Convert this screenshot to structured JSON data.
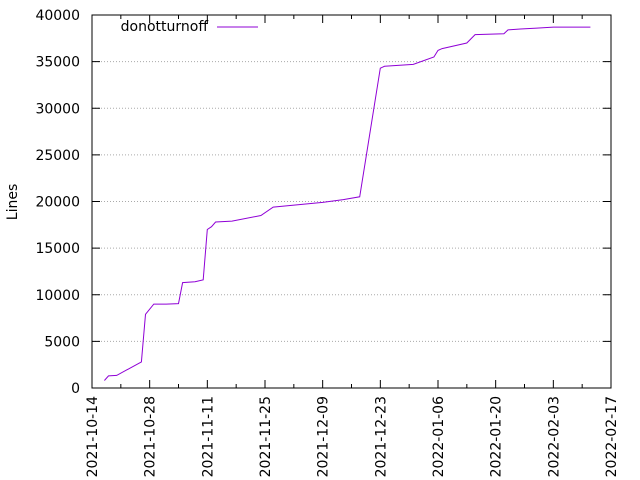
{
  "chart_data": {
    "type": "line",
    "xlabel": "",
    "ylabel": "Lines",
    "ylim": [
      0,
      40000
    ],
    "xlim": [
      "2021-10-14",
      "2022-02-17"
    ],
    "grid": {
      "y": true,
      "x": false,
      "style": "dotted",
      "color": "#aaaaaa"
    },
    "legend_position": "top-left",
    "x_ticks": [
      "2021-10-14",
      "2021-10-28",
      "2021-11-11",
      "2021-11-25",
      "2021-12-09",
      "2021-12-23",
      "2022-01-06",
      "2022-01-20",
      "2022-02-03",
      "2022-02-17"
    ],
    "y_ticks": [
      "0",
      "5000",
      "10000",
      "15000",
      "20000",
      "25000",
      "30000",
      "35000",
      "40000"
    ],
    "series": [
      {
        "name": "donotturnoff",
        "color": "#8f00d6",
        "points": [
          [
            "2021-10-17",
            800
          ],
          [
            "2021-10-18",
            1300
          ],
          [
            "2021-10-20",
            1350
          ],
          [
            "2021-10-26",
            2800
          ],
          [
            "2021-10-27",
            7900
          ],
          [
            "2021-10-29",
            9000
          ],
          [
            "2021-11-01",
            9000
          ],
          [
            "2021-11-04",
            9050
          ],
          [
            "2021-11-05",
            11300
          ],
          [
            "2021-11-08",
            11400
          ],
          [
            "2021-11-10",
            11600
          ],
          [
            "2021-11-11",
            17000
          ],
          [
            "2021-11-12",
            17300
          ],
          [
            "2021-11-13",
            17800
          ],
          [
            "2021-11-17",
            17900
          ],
          [
            "2021-11-24",
            18500
          ],
          [
            "2021-11-27",
            19400
          ],
          [
            "2021-12-09",
            19900
          ],
          [
            "2021-12-14",
            20200
          ],
          [
            "2021-12-18",
            20500
          ],
          [
            "2021-12-23",
            34300
          ],
          [
            "2021-12-24",
            34500
          ],
          [
            "2021-12-31",
            34700
          ],
          [
            "2022-01-05",
            35500
          ],
          [
            "2022-01-06",
            36200
          ],
          [
            "2022-01-07",
            36400
          ],
          [
            "2022-01-13",
            37000
          ],
          [
            "2022-01-15",
            37900
          ],
          [
            "2022-01-22",
            38000
          ],
          [
            "2022-01-23",
            38400
          ],
          [
            "2022-01-26",
            38500
          ],
          [
            "2022-01-30",
            38600
          ],
          [
            "2022-02-03",
            38700
          ],
          [
            "2022-02-12",
            38700
          ]
        ]
      }
    ]
  }
}
